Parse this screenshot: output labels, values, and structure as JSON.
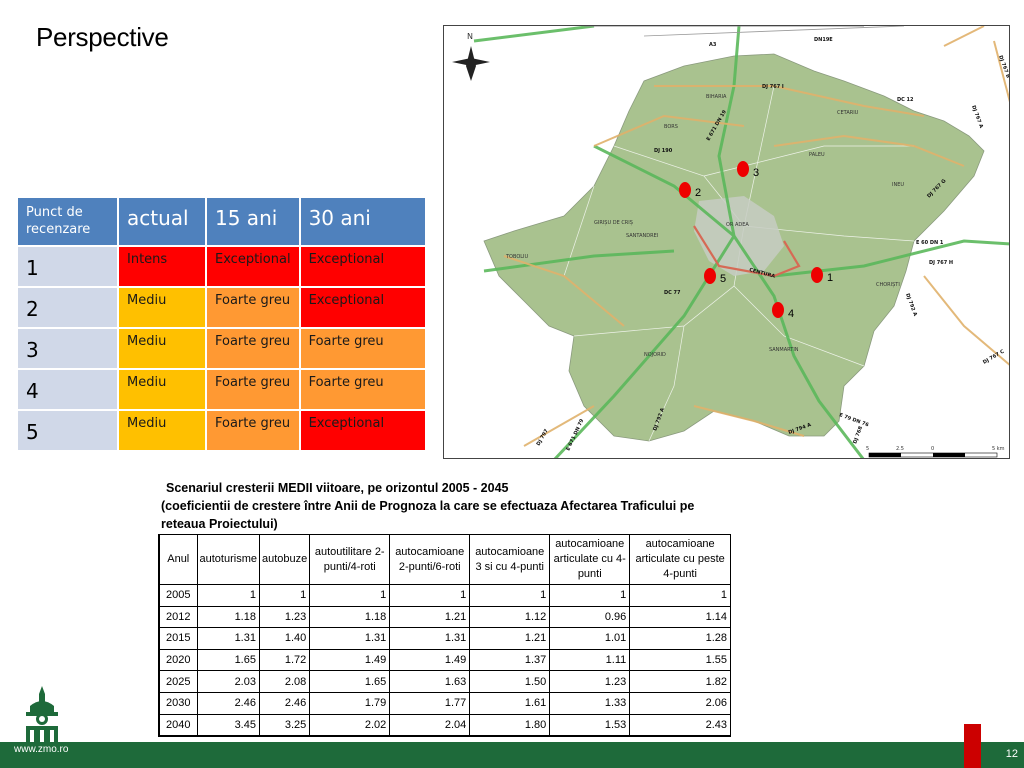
{
  "slide": {
    "title": "Perspective",
    "footer_url": "www.zmo.ro",
    "page_number": "12",
    "colors": {
      "footer_green": "#1e6a3a",
      "header_blue": "#4f81bd",
      "accent_red": "#cc0000"
    }
  },
  "points_table": {
    "headers": [
      "Punct de recenzare",
      "actual",
      "15 ani",
      "30 ani"
    ],
    "rows": [
      {
        "point": "1",
        "actual": "Intens",
        "y15": "Exceptional",
        "y30": "Exceptional"
      },
      {
        "point": "2",
        "actual": "Mediu",
        "y15": "Foarte greu",
        "y30": "Exceptional"
      },
      {
        "point": "3",
        "actual": "Mediu",
        "y15": "Foarte greu",
        "y30": "Foarte greu"
      },
      {
        "point": "4",
        "actual": "Mediu",
        "y15": "Foarte greu",
        "y30": "Foarte greu"
      },
      {
        "point": "5",
        "actual": "Mediu",
        "y15": "Foarte greu",
        "y30": "Exceptional"
      }
    ]
  },
  "map": {
    "north_label": "N",
    "points": [
      "1",
      "2",
      "3",
      "4",
      "5"
    ],
    "towns": [
      "BIHARIA",
      "BORS",
      "CETARIU",
      "PALEU",
      "INEU",
      "GIRIȘU DE CRIȘ",
      "SANTANDREI",
      "TOBOLIU",
      "OR ADEA",
      "CHORIȘTI",
      "NOJORID",
      "SANMARTIN"
    ],
    "roads": [
      "A3",
      "DN19E",
      "DJ 767 I",
      "DC 12",
      "E 671 DN 19",
      "DJ 190",
      "DJ 767 G",
      "E 60 DN 1",
      "DJ 767 H",
      "CENTURA",
      "DC 77",
      "DJ 797",
      "E 671 DN 79",
      "DJ 792 A",
      "E 79 DN 76",
      "DJ 794 A",
      "DJ 768",
      "DJ 767 B",
      "DJ 767 A",
      "DJ 767 C",
      "DJ 792 A"
    ],
    "scale_labels": [
      "5",
      "2.5",
      "0",
      "5 km"
    ]
  },
  "scenario": {
    "caption_line1": "Scenariul cresterii MEDII viitoare, pe orizontul 2005 - 2045",
    "caption_line2": "(coeficientii de crestere între Anii de Prognoza la care se efectuaza Afectarea Traficului pe reteaua Proiectului)",
    "headers": [
      "Anul",
      "autoturisme",
      "autobuze",
      "autoutilitare 2-punti/4-roti",
      "autocamioane 2-punti/6-roti",
      "autocamioane 3 si cu 4-punti",
      "autocamioane articulate cu 4-punti",
      "autocamioane articulate cu peste 4-punti"
    ],
    "rows": [
      [
        "2005",
        "1",
        "1",
        "1",
        "1",
        "1",
        "1",
        "1"
      ],
      [
        "2012",
        "1.18",
        "1.23",
        "1.18",
        "1.21",
        "1.12",
        "0.96",
        "1.14"
      ],
      [
        "2015",
        "1.31",
        "1.40",
        "1.31",
        "1.31",
        "1.21",
        "1.01",
        "1.28"
      ],
      [
        "2020",
        "1.65",
        "1.72",
        "1.49",
        "1.49",
        "1.37",
        "1.11",
        "1.55"
      ],
      [
        "2025",
        "2.03",
        "2.08",
        "1.65",
        "1.63",
        "1.50",
        "1.23",
        "1.82"
      ],
      [
        "2030",
        "2.46",
        "2.46",
        "1.79",
        "1.77",
        "1.61",
        "1.33",
        "2.06"
      ],
      [
        "2040",
        "3.45",
        "3.25",
        "2.02",
        "2.04",
        "1.80",
        "1.53",
        "2.43"
      ]
    ]
  }
}
